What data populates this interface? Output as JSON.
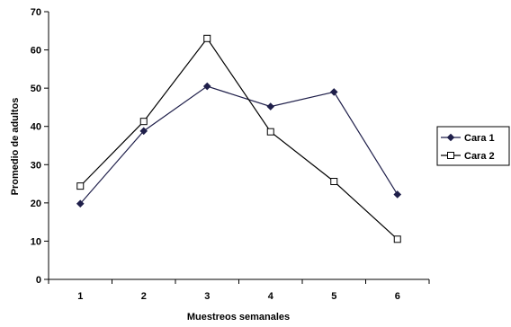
{
  "chart_data": {
    "type": "line",
    "title": "",
    "xlabel": "Muestreos semanales",
    "ylabel": "Promedio de adultos",
    "categories": [
      "1",
      "2",
      "3",
      "4",
      "5",
      "6"
    ],
    "ylim": [
      0,
      70
    ],
    "yticks": [
      "0",
      "10",
      "20",
      "30",
      "40",
      "50",
      "60",
      "70"
    ],
    "grid": false,
    "legend_position": "right",
    "series": [
      {
        "name": "Cara 1",
        "marker": "filled-diamond",
        "color": "#1f1f4a",
        "values": [
          19.8,
          38.8,
          50.5,
          45.2,
          49.0,
          22.2
        ]
      },
      {
        "name": "Cara 2",
        "marker": "open-square",
        "color": "#000000",
        "values": [
          24.4,
          41.3,
          63.0,
          38.6,
          25.6,
          10.5
        ]
      }
    ]
  }
}
